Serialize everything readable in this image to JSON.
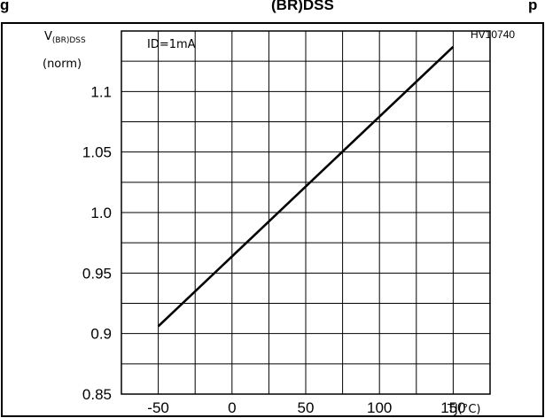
{
  "chart_data": {
    "type": "line",
    "title_partial": "g",
    "title_symbol": "(BR)DSS",
    "title_right": "p",
    "figure_ref": "HV10740",
    "condition": "ID=1mA",
    "ylabel_main": "V",
    "ylabel_sub": "(BR)DSS",
    "ylabel_unit": "(norm)",
    "xlabel": "TJ(°C)",
    "xlim": [
      -75,
      175
    ],
    "ylim": [
      0.85,
      1.15
    ],
    "x_ticks": [
      "-50",
      "0",
      "50",
      "100",
      "150"
    ],
    "y_ticks": [
      "0.85",
      "0.9",
      "0.95",
      "1.0",
      "1.05",
      "1.1"
    ],
    "grid": true,
    "series": [
      {
        "x": [
          -50,
          150
        ],
        "y": [
          0.906,
          1.137
        ]
      }
    ]
  }
}
